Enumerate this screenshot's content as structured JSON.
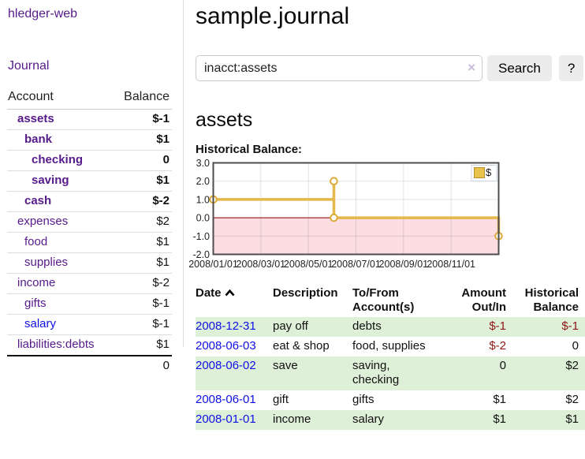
{
  "sidebar": {
    "app_title": "hledger-web",
    "nav": {
      "journal": "Journal"
    },
    "table": {
      "headers": {
        "account": "Account",
        "balance": "Balance"
      },
      "accounts": [
        {
          "name": "assets",
          "balance": "$-1",
          "depth": 1,
          "bold": true,
          "balance_tone": "negative-strong"
        },
        {
          "name": "bank",
          "balance": "$1",
          "depth": 2,
          "bold": true,
          "balance_tone": "normal"
        },
        {
          "name": "checking",
          "balance": "0",
          "depth": 3,
          "bold": true,
          "balance_tone": "normal"
        },
        {
          "name": "saving",
          "balance": "$1",
          "depth": 3,
          "bold": true,
          "balance_tone": "normal"
        },
        {
          "name": "cash",
          "balance": "$-2",
          "depth": 2,
          "bold": true,
          "balance_tone": "negative-strong"
        },
        {
          "name": "expenses",
          "balance": "$2",
          "depth": 1,
          "bold": false,
          "balance_tone": "normal"
        },
        {
          "name": "food",
          "balance": "$1",
          "depth": 2,
          "bold": false,
          "balance_tone": "normal"
        },
        {
          "name": "supplies",
          "balance": "$1",
          "depth": 2,
          "bold": false,
          "balance_tone": "normal"
        },
        {
          "name": "income",
          "balance": "$-2",
          "depth": 1,
          "bold": false,
          "balance_tone": "negative-muted"
        },
        {
          "name": "gifts",
          "balance": "$-1",
          "depth": 2,
          "bold": false,
          "balance_tone": "negative-muted"
        },
        {
          "name": "salary",
          "balance": "$-1",
          "depth": 2,
          "bold": false,
          "balance_tone": "negative-muted",
          "link_color": "blue"
        },
        {
          "name": "liabilities:debts",
          "balance": "$1",
          "depth": 1,
          "bold": false,
          "balance_tone": "normal"
        }
      ],
      "total": "0"
    }
  },
  "header": {
    "title": "sample.journal"
  },
  "search": {
    "query": "inacct:assets",
    "clear_icon": "×",
    "button_label": "Search",
    "help_button_label": "?"
  },
  "account_page": {
    "heading": "assets",
    "chart_label": "Historical Balance:"
  },
  "chart_data": {
    "type": "line",
    "title": "Historical Balance:",
    "ylim": [
      -2.0,
      3.0
    ],
    "y_ticks": [
      3.0,
      2.0,
      1.0,
      0.0,
      -1.0,
      -2.0
    ],
    "x_tick_months": [
      0,
      2,
      4,
      6,
      8,
      10
    ],
    "x_tick_labels": [
      "2008/01/01",
      "2008/03/01",
      "2008/05/01",
      "2008/07/01",
      "2008/09/01",
      "2008/11/01"
    ],
    "grid": true,
    "legend": {
      "label": "$",
      "position": "top-right",
      "swatch_color": "#e8c24a",
      "swatch_border": "#b8912e"
    },
    "negative_region_fill": "#fbdde2",
    "zero_line_color": "#8b0000",
    "series": [
      {
        "name": "$",
        "color": "#e4b84a",
        "marker_color": "#ddab39",
        "steps_month_value": [
          [
            0,
            1
          ],
          [
            5.07,
            1
          ],
          [
            5.07,
            2
          ],
          [
            5.07,
            0
          ],
          [
            12,
            0
          ],
          [
            12,
            -1
          ]
        ],
        "markers_month_value": [
          [
            0,
            1
          ],
          [
            5.07,
            2
          ],
          [
            5.07,
            0
          ],
          [
            12,
            -1
          ]
        ],
        "points_date_value": [
          {
            "date": "2008-01-01",
            "value": 1
          },
          {
            "date": "2008-06-01",
            "value": 2
          },
          {
            "date": "2008-06-03",
            "value": 0
          },
          {
            "date": "2008-12-31",
            "value": -1
          }
        ]
      }
    ]
  },
  "main_table": {
    "headers": {
      "date": "Date",
      "sort_direction": "ascending",
      "description": "Description",
      "accounts": "To/From Account(s)",
      "amount": "Amount Out/In",
      "balance": "Historical Balance"
    },
    "rows": [
      {
        "date": "2008-12-31",
        "description": "pay off",
        "accounts": "debts",
        "amount": "$-1",
        "balance": "$-1",
        "amount_tone": "negative",
        "balance_tone": "negative"
      },
      {
        "date": "2008-06-03",
        "description": "eat & shop",
        "accounts": "food, supplies",
        "amount": "$-2",
        "balance": "0",
        "amount_tone": "negative",
        "balance_tone": "normal"
      },
      {
        "date": "2008-06-02",
        "description": "save",
        "accounts": "saving, checking",
        "amount": "0",
        "balance": "$2",
        "amount_tone": "normal",
        "balance_tone": "normal"
      },
      {
        "date": "2008-06-01",
        "description": "gift",
        "accounts": "gifts",
        "amount": "$1",
        "balance": "$2",
        "amount_tone": "normal",
        "balance_tone": "normal"
      },
      {
        "date": "2008-01-01",
        "description": "income",
        "accounts": "salary",
        "amount": "$1",
        "balance": "$1",
        "amount_tone": "normal",
        "balance_tone": "normal"
      }
    ]
  },
  "colors": {
    "link_purple": "#561a8b",
    "link_blue": "#1010e8",
    "negative_strong": "#8f1616",
    "negative_muted": "#c47070",
    "row_stripe_green": "#dff0d8",
    "chart_line_gold": "#e4b84a"
  }
}
